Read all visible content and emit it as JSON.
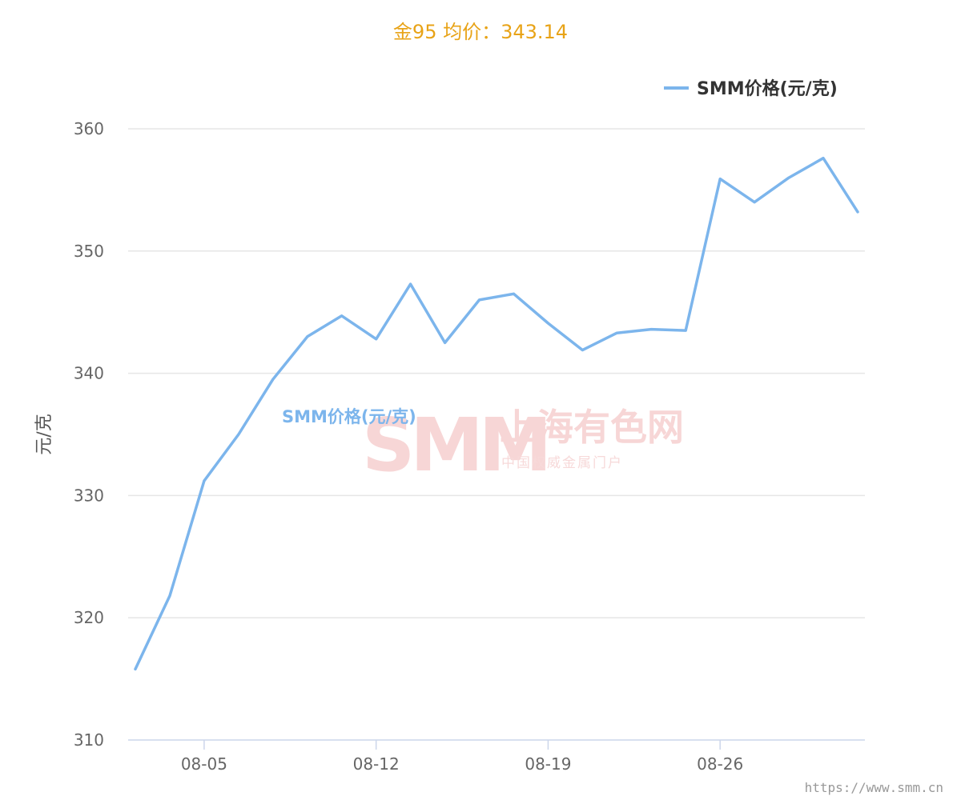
{
  "title": "金95 均价：343.14",
  "watermark": {
    "logo": "SMM",
    "name_cn": "上海有色网",
    "tagline": "中国权威金属门户"
  },
  "source_url": "https://www.smm.cn",
  "colors": {
    "title": "#e8a317",
    "series": "#7cb5ec",
    "grid": "#e6e6e6",
    "axis": "#ccd6eb"
  },
  "chart_data": {
    "type": "line",
    "ylabel": "元/克",
    "xlabel": "",
    "ylim": [
      310,
      360
    ],
    "yticks": [
      310,
      320,
      330,
      340,
      350,
      360
    ],
    "xticks": [
      "08-05",
      "08-12",
      "08-19",
      "08-26"
    ],
    "grid": true,
    "legend_position": "top-right",
    "series": [
      {
        "name": "SMM价格(元/克)",
        "x": [
          "08-01",
          "08-02",
          "08-05",
          "08-06",
          "08-07",
          "08-08",
          "08-09",
          "08-12",
          "08-13",
          "08-14",
          "08-15",
          "08-16",
          "08-19",
          "08-20",
          "08-21",
          "08-22",
          "08-23",
          "08-26",
          "08-27",
          "08-28",
          "08-29",
          "08-30"
        ],
        "values": [
          315.8,
          321.8,
          331.2,
          335.0,
          339.5,
          343.0,
          344.7,
          342.8,
          347.3,
          342.5,
          346.0,
          346.5,
          344.1,
          341.9,
          343.3,
          343.6,
          343.5,
          355.9,
          354.0,
          356.0,
          357.6,
          353.2
        ]
      }
    ]
  }
}
